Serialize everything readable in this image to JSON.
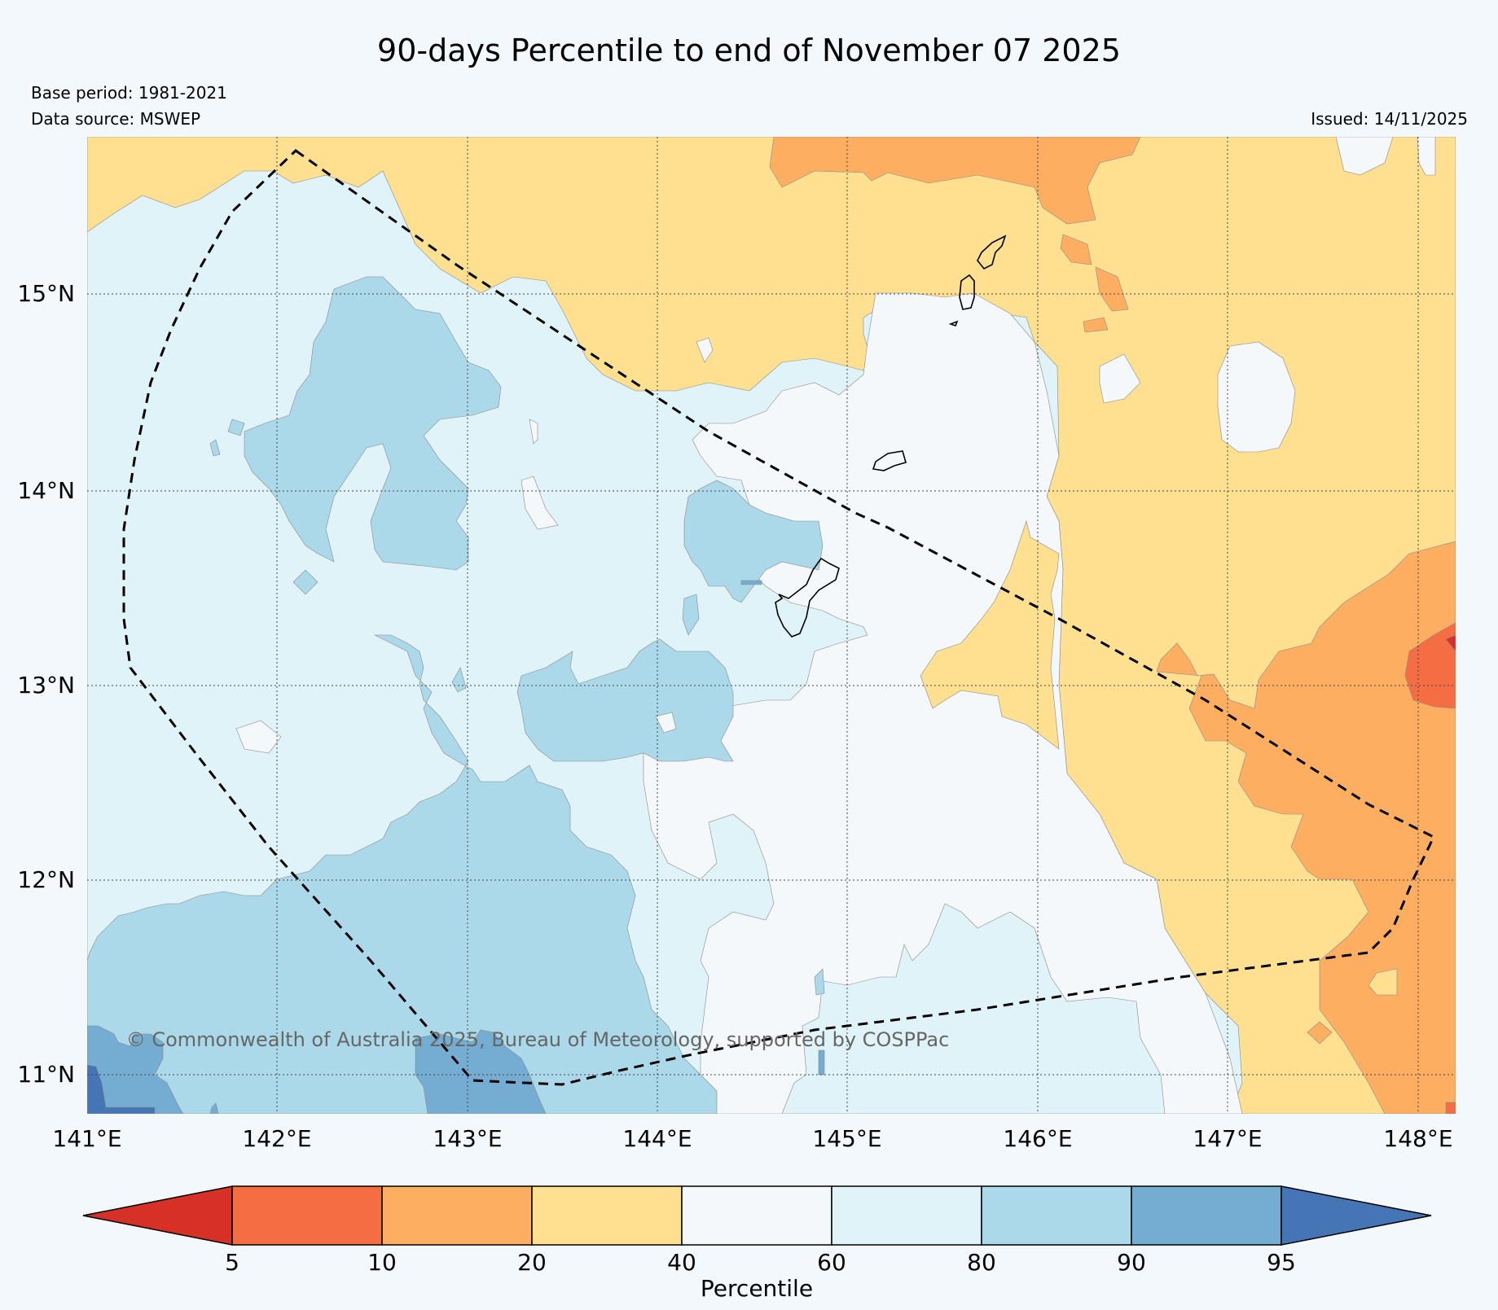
{
  "title": "90-days Percentile to end of November 07 2025",
  "base_period": "Base period: 1981-2021",
  "data_source": "Data source: MSWEP",
  "issued": "Issued: 14/11/2025",
  "copyright": "© Commonwealth of Australia 2025, Bureau of Meteorology, supported by COSPPac",
  "lon_labels": [
    "141°E",
    "142°E",
    "143°E",
    "144°E",
    "145°E",
    "146°E",
    "147°E",
    "148°E"
  ],
  "lat_labels": [
    "15°N",
    "14°N",
    "13°N",
    "12°N",
    "11°N"
  ],
  "colorbar": {
    "label": "Percentile",
    "ticks": [
      "5",
      "10",
      "20",
      "40",
      "60",
      "80",
      "90",
      "95"
    ],
    "colors": [
      "#d73027",
      "#f46d43",
      "#fdae61",
      "#fee090",
      "#f4f8fb",
      "#e0f3f8",
      "#abd9e9",
      "#74add1",
      "#4575b4"
    ]
  }
}
